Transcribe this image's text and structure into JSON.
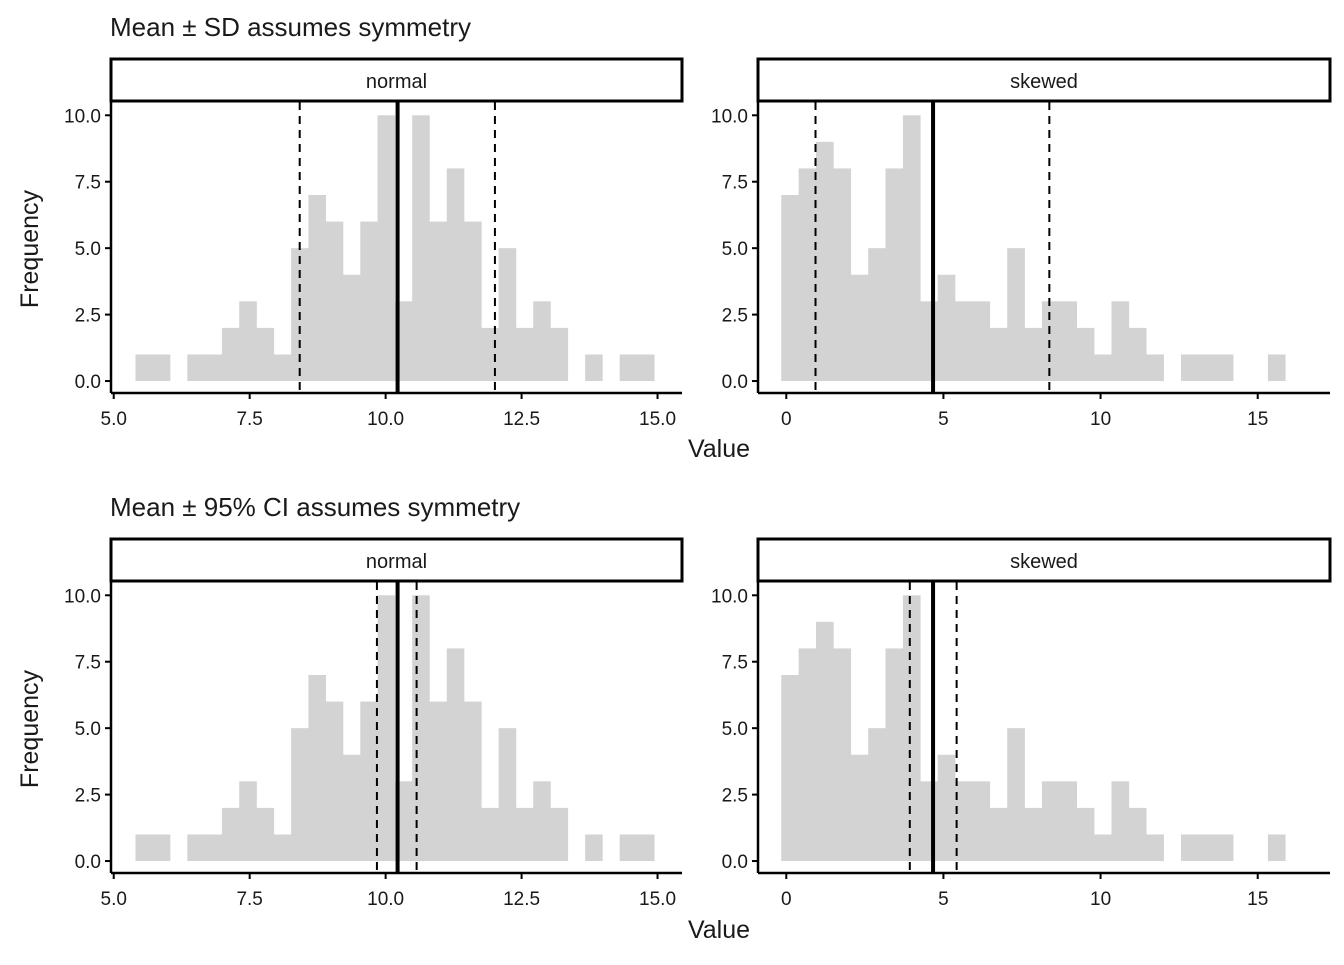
{
  "chart_data": [
    {
      "type": "histogram",
      "title": "Mean ± SD assumes symmetry",
      "xlabel": "Value",
      "ylabel": "Frequency",
      "interval": "SD",
      "panels": [
        {
          "strip": "normal",
          "xlim": [
            4.95,
            15.45
          ],
          "ylim": [
            -0.45,
            10.5
          ],
          "xticks": [
            5.0,
            7.5,
            10.0,
            12.5,
            15.0
          ],
          "xtick_labels": [
            "5.0",
            "7.5",
            "10.0",
            "12.5",
            "15.0"
          ],
          "yticks": [
            0,
            2.5,
            5,
            7.5,
            10
          ],
          "ytick_labels": [
            "0.0",
            "2.5",
            "5.0",
            "7.5",
            "10.0"
          ],
          "bin_start": 5.4,
          "bin_width": 0.318,
          "counts": [
            1,
            1,
            0,
            1,
            1,
            2,
            3,
            2,
            1,
            5,
            7,
            6,
            4,
            6,
            10,
            3,
            10,
            6,
            8,
            6,
            2,
            5,
            2,
            3,
            2,
            0,
            1,
            0,
            1,
            1
          ],
          "mean": 10.22,
          "lower": 8.42,
          "upper": 12.01
        },
        {
          "strip": "skewed",
          "xlim": [
            -0.9,
            17.3
          ],
          "ylim": [
            -0.45,
            10.5
          ],
          "xticks": [
            0,
            5,
            10,
            15
          ],
          "xtick_labels": [
            "0",
            "5",
            "10",
            "15"
          ],
          "yticks": [
            0,
            2.5,
            5,
            7.5,
            10
          ],
          "ytick_labels": [
            "0.0",
            "2.5",
            "5.0",
            "7.5",
            "10.0"
          ],
          "bin_start": -0.16,
          "bin_width": 0.553,
          "counts": [
            7,
            8,
            9,
            8,
            4,
            5,
            8,
            10,
            3,
            4,
            3,
            3,
            2,
            5,
            2,
            3,
            3,
            2,
            1,
            3,
            2,
            1,
            0,
            1,
            1,
            1,
            0,
            0,
            1
          ],
          "mean": 4.67,
          "lower": 0.93,
          "upper": 8.37
        }
      ]
    },
    {
      "type": "histogram",
      "title": "Mean ± 95% CI assumes symmetry",
      "xlabel": "Value",
      "ylabel": "Frequency",
      "interval": "95% CI",
      "panels": [
        {
          "strip": "normal",
          "xlim": [
            4.95,
            15.45
          ],
          "ylim": [
            -0.45,
            10.5
          ],
          "xticks": [
            5.0,
            7.5,
            10.0,
            12.5,
            15.0
          ],
          "xtick_labels": [
            "5.0",
            "7.5",
            "10.0",
            "12.5",
            "15.0"
          ],
          "yticks": [
            0,
            2.5,
            5,
            7.5,
            10
          ],
          "ytick_labels": [
            "0.0",
            "2.5",
            "5.0",
            "7.5",
            "10.0"
          ],
          "bin_start": 5.4,
          "bin_width": 0.318,
          "counts": [
            1,
            1,
            0,
            1,
            1,
            2,
            3,
            2,
            1,
            5,
            7,
            6,
            4,
            6,
            10,
            3,
            10,
            6,
            8,
            6,
            2,
            5,
            2,
            3,
            2,
            0,
            1,
            0,
            1,
            1
          ],
          "mean": 10.22,
          "lower": 9.84,
          "upper": 10.57
        },
        {
          "strip": "skewed",
          "xlim": [
            -0.9,
            17.3
          ],
          "ylim": [
            -0.45,
            10.5
          ],
          "xticks": [
            0,
            5,
            10,
            15
          ],
          "xtick_labels": [
            "0",
            "5",
            "10",
            "15"
          ],
          "yticks": [
            0,
            2.5,
            5,
            7.5,
            10
          ],
          "ytick_labels": [
            "0.0",
            "2.5",
            "5.0",
            "7.5",
            "10.0"
          ],
          "bin_start": -0.16,
          "bin_width": 0.553,
          "counts": [
            7,
            8,
            9,
            8,
            4,
            5,
            8,
            10,
            3,
            4,
            3,
            3,
            2,
            5,
            2,
            3,
            3,
            2,
            1,
            3,
            2,
            1,
            0,
            1,
            1,
            1,
            0,
            0,
            1
          ],
          "mean": 4.67,
          "lower": 3.93,
          "upper": 5.42
        }
      ]
    }
  ],
  "colors": {
    "bar_fill": "#d3d3d3",
    "line": "#000000",
    "text": "#1a1a1a"
  }
}
